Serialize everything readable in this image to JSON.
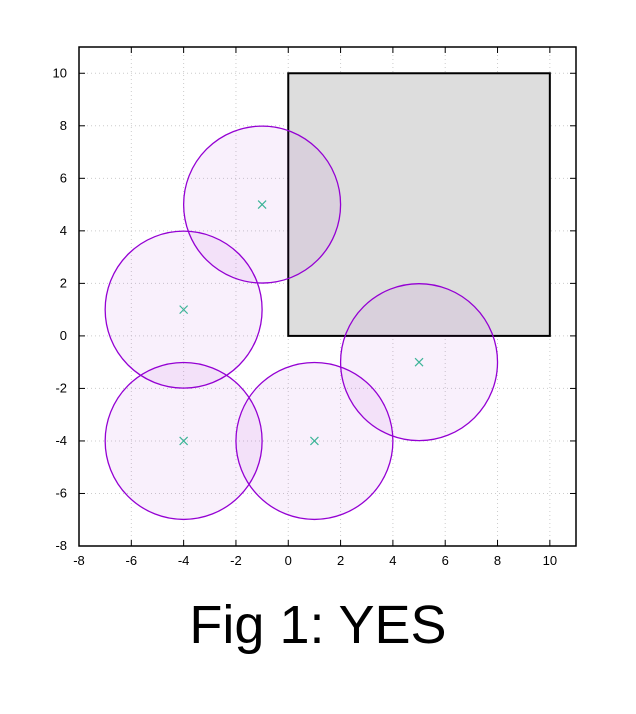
{
  "caption": "Fig 1: YES",
  "chart_data": {
    "type": "scatter",
    "title": "",
    "xlabel": "",
    "ylabel": "",
    "xlim": [
      -8,
      11
    ],
    "ylim": [
      -8,
      11
    ],
    "x_ticks": [
      -8,
      -6,
      -4,
      -2,
      0,
      2,
      4,
      6,
      8,
      10
    ],
    "y_ticks": [
      -8,
      -6,
      -4,
      -2,
      0,
      2,
      4,
      6,
      8,
      10
    ],
    "grid": true,
    "legend": "none",
    "rectangle": {
      "x_min": 0,
      "y_min": 0,
      "x_max": 10,
      "y_max": 10,
      "fill": "#dddddd",
      "stroke": "#000000"
    },
    "circles": [
      {
        "cx": -1,
        "cy": 5,
        "r": 3
      },
      {
        "cx": -4,
        "cy": 1,
        "r": 3
      },
      {
        "cx": 5,
        "cy": -1,
        "r": 3
      },
      {
        "cx": -4,
        "cy": -4,
        "r": 3
      },
      {
        "cx": 1,
        "cy": -4,
        "r": 3
      }
    ],
    "colors": {
      "circle_stroke": "#9400d3",
      "circle_fill": "#9400d3",
      "center_marker": "#3cb497",
      "grid": "#cccccc",
      "axis": "#000000"
    }
  }
}
